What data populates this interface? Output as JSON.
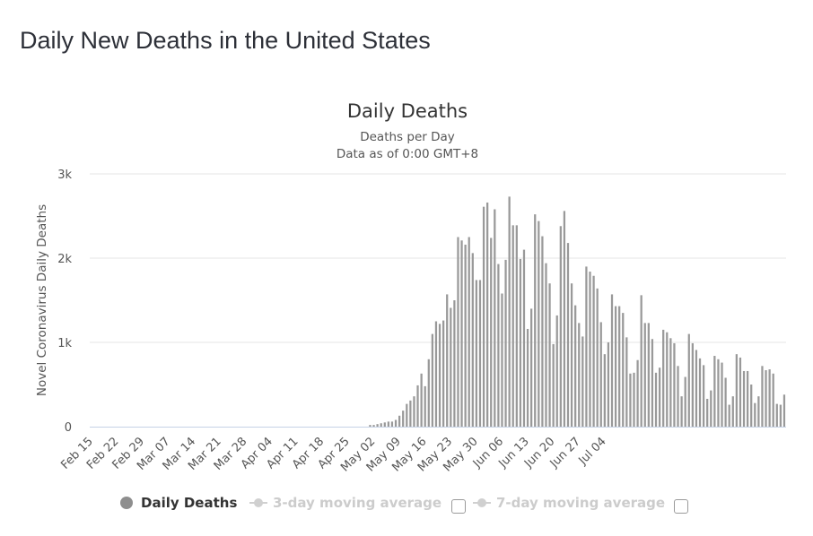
{
  "page": {
    "title": "Daily New Deaths in the United States"
  },
  "chart_data": {
    "type": "bar",
    "title": "Daily Deaths",
    "subtitle_lines": [
      "Deaths per Day",
      "Data as of 0:00 GMT+8"
    ],
    "ylabel": "Novel Coronavirus Daily Deaths",
    "xlabel": "",
    "ylim": [
      0,
      3000
    ],
    "y_ticks": [
      0,
      1000,
      2000,
      3000
    ],
    "y_tick_labels": [
      "0",
      "1k",
      "2k",
      "3k"
    ],
    "grid": true,
    "bar_color": "#999999",
    "x_tick_labels": [
      "Feb 15",
      "Feb 22",
      "Feb 29",
      "Mar 07",
      "Mar 14",
      "Mar 21",
      "Mar 28",
      "Apr 04",
      "Apr 11",
      "Apr 18",
      "Apr 25",
      "May 02",
      "May 09",
      "May 16",
      "May 23",
      "May 30",
      "Jun 06",
      "Jun 13",
      "Jun 20",
      "Jun 27",
      "Jul 04"
    ],
    "x_start": "Feb 15",
    "series": [
      {
        "name": "Daily Deaths",
        "values": [
          0,
          0,
          0,
          0,
          0,
          0,
          0,
          0,
          0,
          0,
          0,
          0,
          0,
          0,
          0,
          0,
          0,
          0,
          0,
          0,
          0,
          0,
          0,
          0,
          0,
          0,
          0,
          0,
          0,
          0,
          0,
          0,
          0,
          0,
          0,
          0,
          0,
          0,
          0,
          0,
          0,
          0,
          0,
          0,
          0,
          0,
          0,
          0,
          0,
          0,
          0,
          0,
          0,
          0,
          0,
          0,
          0,
          0,
          0,
          0,
          0,
          0,
          0,
          0,
          0,
          0,
          0,
          0,
          0,
          0,
          0,
          0,
          0,
          0,
          0,
          0,
          20,
          20,
          30,
          40,
          50,
          60,
          60,
          80,
          130,
          190,
          270,
          310,
          360,
          490,
          630,
          480,
          800,
          1100,
          1250,
          1220,
          1260,
          1570,
          1410,
          1500,
          2250,
          2210,
          2160,
          2250,
          2060,
          1740,
          1740,
          2610,
          2660,
          2240,
          2580,
          1930,
          1580,
          1980,
          2730,
          2390,
          2390,
          1990,
          2100,
          1160,
          1400,
          2520,
          2440,
          2260,
          1940,
          1700,
          980,
          1320,
          2380,
          2560,
          2180,
          1700,
          1440,
          1230,
          1070,
          1900,
          1840,
          1790,
          1640,
          1240,
          860,
          1000,
          1570,
          1430,
          1430,
          1350,
          1060,
          630,
          640,
          790,
          1560,
          1230,
          1230,
          1040,
          640,
          700,
          1150,
          1120,
          1050,
          990,
          720,
          360,
          590,
          1100,
          990,
          910,
          810,
          730,
          330,
          430,
          840,
          800,
          760,
          580,
          260,
          360,
          860,
          820,
          660,
          660,
          500,
          280,
          360,
          720,
          670,
          680,
          630,
          270,
          260,
          380
        ]
      }
    ],
    "legend": {
      "position": "bottom",
      "items": [
        {
          "label": "Daily Deaths",
          "state": "visible",
          "color": "#8e8e8e"
        },
        {
          "label": "3-day moving average",
          "state": "hidden",
          "color": "#cccccc"
        },
        {
          "label": "7-day moving average",
          "state": "hidden",
          "color": "#cccccc"
        }
      ]
    }
  }
}
